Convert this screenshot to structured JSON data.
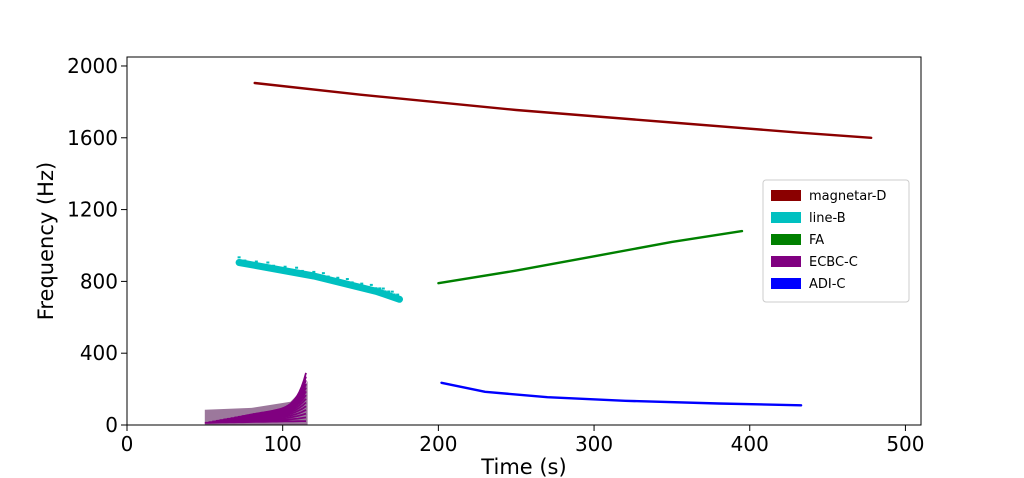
{
  "chart_data": {
    "type": "scatter",
    "title": "",
    "xlabel": "Time (s)",
    "ylabel": "Frequency (Hz)",
    "xlim": [
      0,
      510
    ],
    "ylim": [
      0,
      2050
    ],
    "xticks": [
      0,
      100,
      200,
      300,
      400,
      500
    ],
    "yticks": [
      0,
      400,
      800,
      1200,
      1600,
      2000
    ],
    "grid": false,
    "legend_position": "center-right",
    "series": [
      {
        "name": "magnetar-D",
        "color": "#8b0000",
        "shape": "track",
        "points": [
          [
            82,
            1905
          ],
          [
            150,
            1840
          ],
          [
            250,
            1755
          ],
          [
            350,
            1685
          ],
          [
            430,
            1630
          ],
          [
            478,
            1600
          ]
        ]
      },
      {
        "name": "line-B",
        "color": "#00c0c0",
        "shape": "band",
        "points": [
          [
            72,
            905
          ],
          [
            120,
            830
          ],
          [
            160,
            745
          ],
          [
            175,
            700
          ]
        ]
      },
      {
        "name": "FA",
        "color": "#008000",
        "shape": "track",
        "points": [
          [
            200,
            790
          ],
          [
            250,
            860
          ],
          [
            300,
            940
          ],
          [
            350,
            1020
          ],
          [
            395,
            1080
          ]
        ]
      },
      {
        "name": "ECBC-C",
        "color": "#800080",
        "shape": "chirp",
        "points": [
          [
            50,
            70
          ],
          [
            70,
            90
          ],
          [
            90,
            110
          ],
          [
            105,
            140
          ],
          [
            112,
            190
          ],
          [
            115,
            245
          ]
        ]
      },
      {
        "name": "ADI-C",
        "color": "#0000ff",
        "shape": "track",
        "points": [
          [
            202,
            235
          ],
          [
            230,
            185
          ],
          [
            270,
            155
          ],
          [
            320,
            135
          ],
          [
            380,
            120
          ],
          [
            433,
            110
          ]
        ]
      }
    ]
  }
}
